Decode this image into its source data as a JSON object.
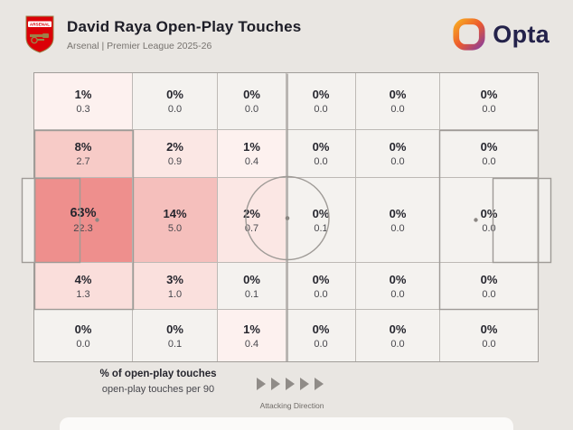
{
  "header": {
    "badge_text": "ARSENAL",
    "title": "David Raya Open-Play Touches",
    "subtitle": "Arsenal | Premier League 2025-26",
    "brand_name": "Opta"
  },
  "legend": {
    "line1": "% of open-play touches",
    "line2": "open-play touches per 90",
    "attacking_direction": "Attacking Direction"
  },
  "colors": {
    "background": "#e9e6e2",
    "grid_line": "#bdb9b5",
    "pitch_line": "#9f9b97",
    "zone_base": "#f4f2ef",
    "zone_max": "#ee8f8d",
    "title_text": "#1d1d27",
    "arsenal_red": "#DB0007",
    "opta_orange": "#F7A823",
    "opta_purple": "#8E3F97"
  },
  "grid": {
    "cells": [
      {
        "pct": "1%",
        "per90": "0.3",
        "color": "#fdf1ef"
      },
      {
        "pct": "0%",
        "per90": "0.0",
        "color": "#f4f2ef"
      },
      {
        "pct": "0%",
        "per90": "0.0",
        "color": "#f4f2ef"
      },
      {
        "pct": "0%",
        "per90": "0.0",
        "color": "#f4f2ef"
      },
      {
        "pct": "0%",
        "per90": "0.0",
        "color": "#f4f2ef"
      },
      {
        "pct": "0%",
        "per90": "0.0",
        "color": "#f4f2ef"
      },
      {
        "pct": "8%",
        "per90": "2.7",
        "color": "#f7cbc7"
      },
      {
        "pct": "2%",
        "per90": "0.9",
        "color": "#fbe7e4"
      },
      {
        "pct": "1%",
        "per90": "0.4",
        "color": "#fdf1ef"
      },
      {
        "pct": "0%",
        "per90": "0.0",
        "color": "#f4f2ef"
      },
      {
        "pct": "0%",
        "per90": "0.0",
        "color": "#f4f2ef"
      },
      {
        "pct": "0%",
        "per90": "0.0",
        "color": "#f4f2ef"
      },
      {
        "pct": "63%",
        "per90": "22.3",
        "color": "#ee8f8d",
        "emph": true
      },
      {
        "pct": "14%",
        "per90": "5.0",
        "color": "#f5bfbc"
      },
      {
        "pct": "2%",
        "per90": "0.7",
        "color": "#fbe7e4"
      },
      {
        "pct": "0%",
        "per90": "0.1",
        "color": "#f4f2ef"
      },
      {
        "pct": "0%",
        "per90": "0.0",
        "color": "#f4f2ef"
      },
      {
        "pct": "0%",
        "per90": "0.0",
        "color": "#f4f2ef"
      },
      {
        "pct": "4%",
        "per90": "1.3",
        "color": "#fadedb"
      },
      {
        "pct": "3%",
        "per90": "1.0",
        "color": "#fae0dd"
      },
      {
        "pct": "0%",
        "per90": "0.1",
        "color": "#f4f2ef"
      },
      {
        "pct": "0%",
        "per90": "0.0",
        "color": "#f4f2ef"
      },
      {
        "pct": "0%",
        "per90": "0.0",
        "color": "#f4f2ef"
      },
      {
        "pct": "0%",
        "per90": "0.0",
        "color": "#f4f2ef"
      },
      {
        "pct": "0%",
        "per90": "0.0",
        "color": "#f4f2ef"
      },
      {
        "pct": "0%",
        "per90": "0.1",
        "color": "#f4f2ef"
      },
      {
        "pct": "1%",
        "per90": "0.4",
        "color": "#fdf1ef"
      },
      {
        "pct": "0%",
        "per90": "0.0",
        "color": "#f4f2ef"
      },
      {
        "pct": "0%",
        "per90": "0.0",
        "color": "#f4f2ef"
      },
      {
        "pct": "0%",
        "per90": "0.0",
        "color": "#f4f2ef"
      }
    ]
  },
  "chart_data": {
    "type": "heatmap",
    "title": "David Raya Open-Play Touches",
    "subtitle": "Arsenal | Premier League 2025-26",
    "rows": 5,
    "cols": 6,
    "orientation": "attacking left-to-right on a football pitch grid",
    "units": {
      "primary": "% of open-play touches",
      "secondary": "open-play touches per 90"
    },
    "pct": [
      [
        1,
        0,
        0,
        0,
        0,
        0
      ],
      [
        8,
        2,
        1,
        0,
        0,
        0
      ],
      [
        63,
        14,
        2,
        0,
        0,
        0
      ],
      [
        4,
        3,
        0,
        0,
        0,
        0
      ],
      [
        0,
        0,
        1,
        0,
        0,
        0
      ]
    ],
    "per90": [
      [
        0.3,
        0.0,
        0.0,
        0.0,
        0.0,
        0.0
      ],
      [
        2.7,
        0.9,
        0.4,
        0.0,
        0.0,
        0.0
      ],
      [
        22.3,
        5.0,
        0.7,
        0.1,
        0.0,
        0.0
      ],
      [
        1.3,
        1.0,
        0.1,
        0.0,
        0.0,
        0.0
      ],
      [
        0.0,
        0.1,
        0.4,
        0.0,
        0.0,
        0.0
      ]
    ]
  }
}
